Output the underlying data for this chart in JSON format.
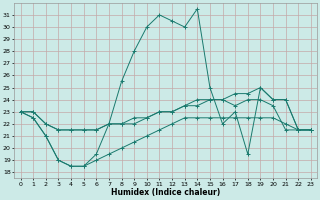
{
  "title": "",
  "xlabel": "Humidex (Indice chaleur)",
  "ylabel": "",
  "background_color": "#cceae7",
  "grid_color": "#c4a8a8",
  "line_color": "#1a7a6e",
  "xlim": [
    -0.5,
    23.5
  ],
  "ylim": [
    17.5,
    32
  ],
  "yticks": [
    18,
    19,
    20,
    21,
    22,
    23,
    24,
    25,
    26,
    27,
    28,
    29,
    30,
    31
  ],
  "xticks": [
    0,
    1,
    2,
    3,
    4,
    5,
    6,
    7,
    8,
    9,
    10,
    11,
    12,
    13,
    14,
    15,
    16,
    17,
    18,
    19,
    20,
    21,
    22,
    23
  ],
  "xtick_labels": [
    "0",
    "1",
    "2",
    "3",
    "4",
    "5",
    "6",
    "7",
    "8",
    "9",
    "10",
    "11",
    "12",
    "13",
    "14",
    "15",
    "16",
    "17",
    "18",
    "19",
    "20",
    "21",
    "22",
    "23"
  ],
  "series": [
    [
      23.0,
      22.5,
      21.0,
      19.0,
      18.5,
      18.5,
      19.0,
      19.5,
      20.0,
      20.5,
      21.0,
      21.5,
      22.0,
      22.5,
      22.5,
      22.5,
      22.5,
      22.5,
      22.5,
      22.5,
      22.5,
      22.0,
      21.5,
      21.5
    ],
    [
      23.0,
      22.5,
      21.0,
      19.0,
      18.5,
      18.5,
      19.5,
      22.0,
      25.5,
      28.0,
      30.0,
      31.0,
      30.5,
      30.0,
      31.5,
      25.0,
      22.0,
      23.0,
      19.5,
      25.0,
      24.0,
      24.0,
      21.5,
      21.5
    ],
    [
      23.0,
      23.0,
      22.0,
      21.5,
      21.5,
      21.5,
      21.5,
      22.0,
      22.0,
      22.5,
      22.5,
      23.0,
      23.0,
      23.5,
      24.0,
      24.0,
      24.0,
      24.5,
      24.5,
      25.0,
      24.0,
      24.0,
      21.5,
      21.5
    ],
    [
      23.0,
      23.0,
      22.0,
      21.5,
      21.5,
      21.5,
      21.5,
      22.0,
      22.0,
      22.0,
      22.5,
      23.0,
      23.0,
      23.5,
      23.5,
      24.0,
      24.0,
      23.5,
      24.0,
      24.0,
      23.5,
      21.5,
      21.5,
      21.5
    ]
  ]
}
